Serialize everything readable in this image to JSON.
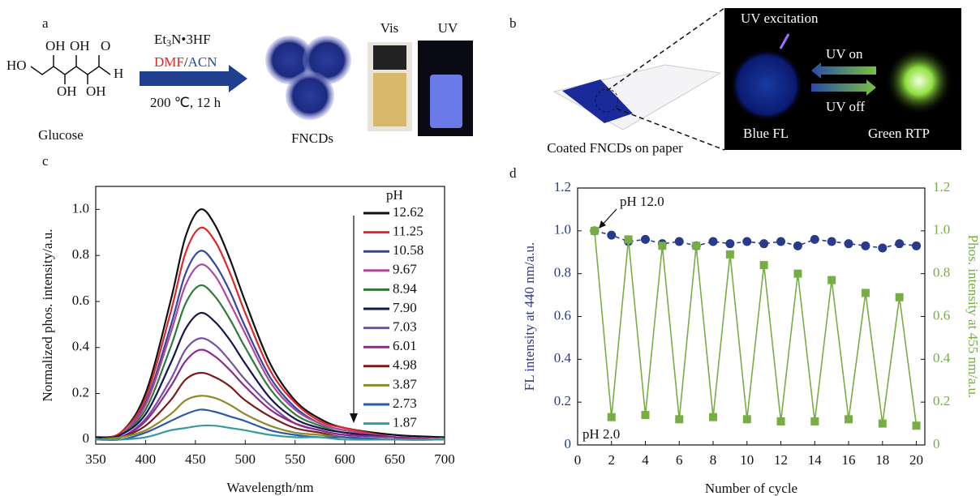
{
  "figure": {
    "panel_a": {
      "label": "a",
      "molecule": [
        "HO",
        "OH",
        "OH",
        "OH",
        "OH",
        "O",
        "H"
      ],
      "molecule_name": "Glucose",
      "reagent": "Et",
      "reagent_sub": "3",
      "reagent_rest": "N•3HF",
      "solvent_1": "DMF",
      "solvent_sep": "/",
      "solvent_2": "ACN",
      "conditions": "200 ℃, 12 h",
      "product": "FNCDs",
      "vis": "Vis",
      "uv": "UV"
    },
    "panel_b": {
      "label": "b",
      "paper": "Coated FNCDs on paper",
      "excitation": "UV excitation",
      "on": "UV on",
      "off": "UV off",
      "fl": "Blue FL",
      "rtp": "Green RTP"
    }
  },
  "chart_data": [
    {
      "type": "line",
      "label": "c",
      "smooth": true,
      "xlabel": "Wavelength/nm",
      "ylabel": "Normalized phos. intensity/a.u.",
      "legend": true,
      "legend_title": "pH",
      "x": [
        350,
        375,
        400,
        425,
        440,
        455,
        470,
        485,
        500,
        525,
        550,
        575,
        600,
        650,
        700
      ],
      "xlim": [
        350,
        700
      ],
      "xticks": [
        350,
        400,
        450,
        500,
        550,
        600,
        650,
        700
      ],
      "ylim": [
        -0.02,
        1.1
      ],
      "yticks": [
        0,
        0.2,
        0.4,
        0.6,
        0.8,
        {
          "value": 1,
          "label": "1.0"
        }
      ],
      "series": [
        {
          "name": "12.62",
          "color": "#111111",
          "values": [
            0.01,
            0.03,
            0.2,
            0.6,
            0.88,
            1.0,
            0.93,
            0.78,
            0.6,
            0.33,
            0.17,
            0.09,
            0.05,
            0.02,
            0.01
          ]
        },
        {
          "name": "11.25",
          "color": "#e0262b",
          "values": [
            0,
            0.03,
            0.18,
            0.55,
            0.81,
            0.92,
            0.86,
            0.72,
            0.55,
            0.3,
            0.16,
            0.08,
            0.05,
            0.01,
            0
          ]
        },
        {
          "name": "10.58",
          "color": "#34469c",
          "values": [
            0,
            0.02,
            0.16,
            0.49,
            0.72,
            0.82,
            0.76,
            0.64,
            0.49,
            0.27,
            0.14,
            0.07,
            0.04,
            0.01,
            0
          ]
        },
        {
          "name": "9.67",
          "color": "#b0489a",
          "values": [
            0,
            0.02,
            0.15,
            0.46,
            0.67,
            0.76,
            0.71,
            0.59,
            0.46,
            0.25,
            0.13,
            0.07,
            0.04,
            0.01,
            0
          ]
        },
        {
          "name": "8.94",
          "color": "#2f7a3a",
          "values": [
            0,
            0.02,
            0.13,
            0.4,
            0.59,
            0.67,
            0.62,
            0.52,
            0.4,
            0.22,
            0.11,
            0.06,
            0.03,
            0.01,
            0
          ]
        },
        {
          "name": "7.90",
          "color": "#15154f",
          "values": [
            0,
            0.02,
            0.11,
            0.33,
            0.48,
            0.55,
            0.51,
            0.43,
            0.33,
            0.18,
            0.09,
            0.05,
            0.03,
            0.01,
            0
          ]
        },
        {
          "name": "7.03",
          "color": "#7650a8",
          "values": [
            0,
            0.01,
            0.09,
            0.26,
            0.39,
            0.44,
            0.41,
            0.34,
            0.26,
            0.15,
            0.07,
            0.04,
            0.02,
            0.01,
            0
          ]
        },
        {
          "name": "6.01",
          "color": "#8a2a8a",
          "values": [
            0,
            0.01,
            0.08,
            0.23,
            0.34,
            0.39,
            0.36,
            0.3,
            0.23,
            0.13,
            0.07,
            0.04,
            0.02,
            0.01,
            0
          ]
        },
        {
          "name": "4.98",
          "color": "#7a1a1a",
          "values": [
            0,
            0.01,
            0.06,
            0.17,
            0.26,
            0.29,
            0.27,
            0.23,
            0.17,
            0.1,
            0.05,
            0.03,
            0.01,
            0,
            0
          ]
        },
        {
          "name": "3.87",
          "color": "#8c8a2c",
          "values": [
            0,
            0.01,
            0.04,
            0.11,
            0.17,
            0.19,
            0.18,
            0.15,
            0.11,
            0.06,
            0.03,
            0.02,
            0.01,
            0,
            0
          ]
        },
        {
          "name": "2.73",
          "color": "#2a5aa8",
          "values": [
            0,
            0,
            0.03,
            0.08,
            0.11,
            0.13,
            0.12,
            0.1,
            0.08,
            0.04,
            0.02,
            0.01,
            0.01,
            0,
            0
          ]
        },
        {
          "name": "1.87",
          "color": "#3a9a9a",
          "values": [
            0,
            0,
            0.01,
            0.04,
            0.05,
            0.06,
            0.06,
            0.05,
            0.04,
            0.02,
            0.01,
            0.01,
            0,
            0,
            0
          ]
        }
      ]
    },
    {
      "type": "line",
      "label": "d",
      "xlabel": "Number of cycle",
      "ylabel": "FL intensity at 440 nm/a.u.",
      "y2label": "Phos. intensity at 455 nm/a.u.",
      "annotations": [
        "pH 12.0",
        "pH 2.0"
      ],
      "x": [
        1,
        2,
        3,
        4,
        5,
        6,
        7,
        8,
        9,
        10,
        11,
        12,
        13,
        14,
        15,
        16,
        17,
        18,
        19,
        20
      ],
      "xlim": [
        0,
        20.5
      ],
      "xticks": [
        0,
        2,
        4,
        6,
        8,
        10,
        12,
        14,
        16,
        18,
        20
      ],
      "ylim": [
        0,
        1.2
      ],
      "yticks": [
        0,
        0.2,
        0.4,
        0.6,
        0.8,
        {
          "value": 1,
          "label": "1.0"
        },
        1.2
      ],
      "y2lim": [
        0,
        1.2
      ],
      "y2ticks": [
        0,
        0.2,
        0.4,
        0.6,
        0.8,
        {
          "value": 1,
          "label": "1.0"
        },
        1.2
      ],
      "series": [
        {
          "color": "#2a3a8a",
          "marker": "circle",
          "linestyle": "dashed",
          "values": [
            1.0,
            0.98,
            0.95,
            0.96,
            0.94,
            0.95,
            0.93,
            0.95,
            0.94,
            0.95,
            0.94,
            0.95,
            0.93,
            0.96,
            0.95,
            0.94,
            0.93,
            0.92,
            0.94,
            0.93
          ]
        },
        {
          "color": "#76ae44",
          "marker": "square",
          "linestyle": "solid",
          "axis": "y2",
          "values": [
            1.0,
            0.13,
            0.96,
            0.14,
            0.93,
            0.12,
            0.93,
            0.13,
            0.89,
            0.12,
            0.84,
            0.11,
            0.8,
            0.11,
            0.77,
            0.12,
            0.71,
            0.1,
            0.69,
            0.09
          ]
        }
      ]
    }
  ]
}
